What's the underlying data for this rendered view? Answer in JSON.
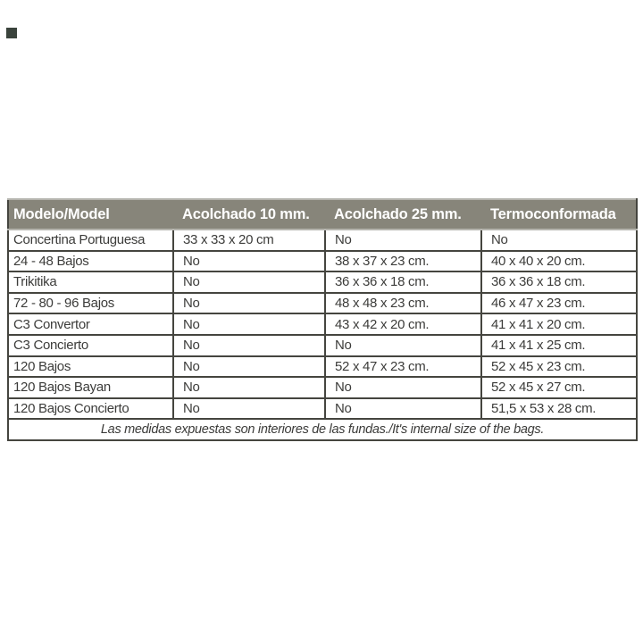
{
  "colors": {
    "header_bg": "#87857a",
    "header_text": "#ffffff",
    "border_dark": "#45453f",
    "border_light": "#b5b4ae",
    "body_text": "#3c3c3a",
    "corner_square": "#3a433c"
  },
  "table": {
    "header": {
      "columns": [
        "Modelo/Model",
        "Acolchado 10 mm.",
        "Acolchado 25 mm.",
        "Termoconformada"
      ]
    },
    "rows": [
      [
        "Concertina Portuguesa",
        "33 x 33 x 20 cm",
        "No",
        "No"
      ],
      [
        "24 - 48 Bajos",
        "No",
        "38 x 37 x 23 cm.",
        "40 x 40 x 20 cm."
      ],
      [
        "Trikitika",
        "No",
        "36 x 36 x 18 cm.",
        "36 x 36 x 18 cm."
      ],
      [
        "72 - 80 - 96 Bajos",
        "No",
        "48 x 48 x 23 cm.",
        "46 x 47 x 23 cm."
      ],
      [
        "C3 Convertor",
        "No",
        "43 x 42 x 20 cm.",
        "41 x 41 x 20 cm."
      ],
      [
        "C3 Concierto",
        "No",
        "No",
        "41 x 41 x 25 cm."
      ],
      [
        "120 Bajos",
        "No",
        "52 x 47 x 23 cm.",
        "52 x 45 x 23 cm."
      ],
      [
        "120 Bajos Bayan",
        "No",
        "No",
        "52 x 45 x 27 cm."
      ],
      [
        "120 Bajos Concierto",
        "No",
        "No",
        "51,5 x 53 x 28 cm."
      ]
    ],
    "footer_note": "Las medidas expuestas son interiores de las fundas./It's internal size of the bags."
  }
}
